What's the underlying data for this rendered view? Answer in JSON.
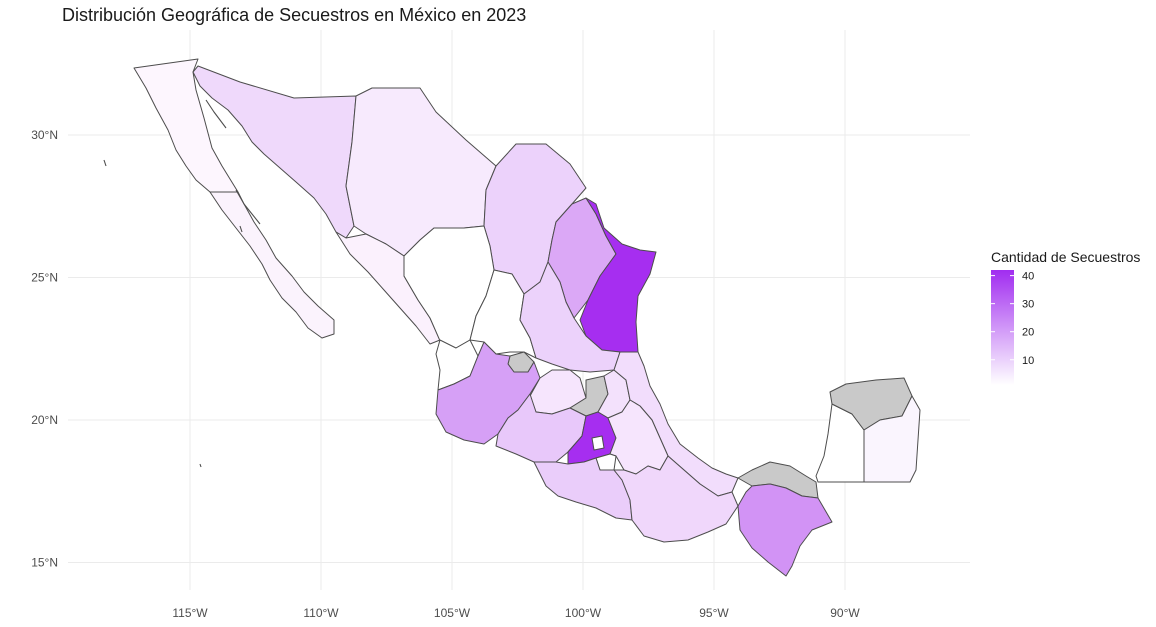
{
  "title": "Distribución Geográfica de Secuestros en México en 2023",
  "chart_data": {
    "type": "choropleth",
    "x_ticks": [
      "115°W",
      "110°W",
      "105°W",
      "100°W",
      "95°W",
      "90°W"
    ],
    "x_tick_values": [
      -115,
      -110,
      -105,
      -100,
      -95,
      -90
    ],
    "y_ticks": [
      "30°N",
      "25°N",
      "20°N",
      "15°N"
    ],
    "y_tick_values": [
      30,
      25,
      20,
      15
    ],
    "xlim": [
      -118.5,
      -85.5
    ],
    "ylim": [
      14,
      33
    ],
    "grid": true,
    "legend": {
      "title": "Cantidad de Secuestros",
      "placement": "right",
      "breaks": [
        10,
        20,
        30,
        40
      ],
      "break_labels": [
        "10",
        "20",
        "30",
        "40"
      ],
      "range": [
        1,
        42
      ],
      "color_low": "#ffffff",
      "color_high": "#a12df0",
      "na_color": "#c9c9c9"
    }
  }
}
